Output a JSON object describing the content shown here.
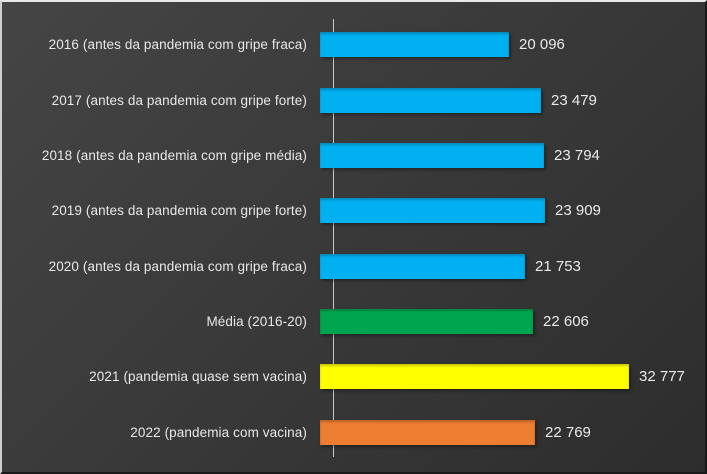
{
  "chart_data": {
    "type": "bar",
    "orientation": "horizontal",
    "title": "",
    "categories": [
      "2016 (antes da pandemia com gripe fraca)",
      "2017 (antes da pandemia com gripe forte)",
      "2018 (antes da pandemia com gripe média)",
      "2019 (antes da pandemia com gripe forte)",
      "2020 (antes da pandemia com gripe fraca)",
      "Média (2016-20)",
      "2021 (pandemia quase sem vacina)",
      "2022 (pandemia com vacina)"
    ],
    "values": [
      20096,
      23479,
      23794,
      23909,
      21753,
      22606,
      32777,
      22769
    ],
    "value_labels": [
      "20 096",
      "23 479",
      "23 794",
      "23 909",
      "21 753",
      "22 606",
      "32 777",
      "22 769"
    ],
    "bar_colors": [
      "#00B0F0",
      "#00B0F0",
      "#00B0F0",
      "#00B0F0",
      "#00B0F0",
      "#00A64F",
      "#FFFF00",
      "#ED7D31"
    ],
    "xlim": [
      0,
      39000
    ],
    "grid": false,
    "legend": false,
    "colors": {
      "background_dark": "#3a3a3a",
      "blue": "#00B0F0",
      "green": "#00A64F",
      "yellow": "#FFFF00",
      "orange": "#ED7D31",
      "text": "#e8e8e8",
      "axis_line": "#c9c9c9"
    }
  }
}
